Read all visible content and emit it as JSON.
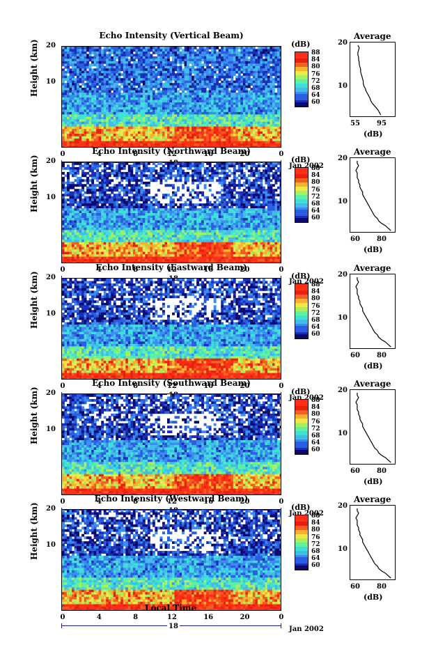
{
  "chart_data": [
    {
      "type": "heatmap",
      "title": "Echo Intensity (Vertical Beam)",
      "ylabel": "Height (km)",
      "x_ticks": [
        "0",
        "4",
        "8",
        "12",
        "16",
        "20",
        "0"
      ],
      "y_ticks": [
        "20",
        "10"
      ],
      "date_day": "18",
      "date_month": "Jan 2002",
      "colorbar": {
        "unit": "(dB)",
        "ticks": [
          "88",
          "84",
          "80",
          "76",
          "72",
          "68",
          "64",
          "60"
        ],
        "range": [
          60,
          88
        ]
      },
      "average": {
        "title": "Average",
        "xlabel": "(dB)",
        "x_ticks": [
          "55",
          "95"
        ],
        "y_ticks": [
          "20",
          "10"
        ],
        "profile_db": [
          92,
          90,
          88,
          85,
          82,
          79,
          77,
          76,
          74,
          72,
          70,
          69,
          67,
          66,
          66,
          65,
          64,
          63,
          62,
          62,
          61,
          60,
          60,
          59,
          59,
          58,
          58,
          59,
          60,
          58
        ]
      }
    },
    {
      "type": "heatmap",
      "title": "Echo Intensity (Northward Beam)",
      "ylabel": "Height (km)",
      "x_ticks": [
        "0",
        "4",
        "8",
        "12",
        "16",
        "20",
        "0"
      ],
      "y_ticks": [
        "20",
        "10"
      ],
      "date_day": "18",
      "date_month": "Jan 2002",
      "colorbar": {
        "unit": "(dB)",
        "ticks": [
          "88",
          "84",
          "80",
          "76",
          "72",
          "68",
          "64",
          "60"
        ],
        "range": [
          60,
          88
        ]
      },
      "average": {
        "title": "Average",
        "xlabel": "(dB)",
        "x_ticks": [
          "60",
          "80"
        ],
        "y_ticks": [
          "20",
          "10"
        ],
        "profile_db": [
          86,
          84,
          82,
          79,
          77,
          76,
          74,
          73,
          72,
          71,
          70,
          69,
          68,
          67,
          66,
          65,
          65,
          64,
          63,
          63,
          62,
          62,
          61,
          61,
          61,
          60,
          61,
          62,
          61,
          61
        ]
      }
    },
    {
      "type": "heatmap",
      "title": "Echo Intensity (Eastward Beam)",
      "ylabel": "Height (km)",
      "x_ticks": [
        "0",
        "4",
        "8",
        "12",
        "16",
        "20",
        "0"
      ],
      "y_ticks": [
        "20",
        "10"
      ],
      "date_day": "18",
      "date_month": "Jan 2002",
      "colorbar": {
        "unit": "(dB)",
        "ticks": [
          "88",
          "84",
          "80",
          "76",
          "72",
          "68",
          "64",
          "60"
        ],
        "range": [
          60,
          88
        ]
      },
      "average": {
        "title": "Average",
        "xlabel": "(dB)",
        "x_ticks": [
          "60",
          "80"
        ],
        "y_ticks": [
          "20",
          "10"
        ],
        "profile_db": [
          86,
          84,
          82,
          79,
          77,
          76,
          74,
          73,
          72,
          71,
          70,
          69,
          68,
          67,
          66,
          65,
          65,
          64,
          63,
          63,
          62,
          62,
          61,
          61,
          61,
          60,
          61,
          62,
          61,
          61
        ]
      }
    },
    {
      "type": "heatmap",
      "title": "Echo Intensity (Southward Beam)",
      "ylabel": "Height (km)",
      "x_ticks": [
        "0",
        "4",
        "8",
        "12",
        "16",
        "20",
        "0"
      ],
      "y_ticks": [
        "20",
        "10"
      ],
      "date_day": "18",
      "date_month": "Jan 2002",
      "colorbar": {
        "unit": "(dB)",
        "ticks": [
          "88",
          "84",
          "80",
          "76",
          "72",
          "68",
          "64",
          "60"
        ],
        "range": [
          60,
          88
        ]
      },
      "average": {
        "title": "Average",
        "xlabel": "(dB)",
        "x_ticks": [
          "60",
          "80"
        ],
        "y_ticks": [
          "20",
          "10"
        ],
        "profile_db": [
          86,
          84,
          82,
          79,
          77,
          76,
          74,
          73,
          72,
          71,
          70,
          69,
          68,
          67,
          66,
          65,
          65,
          64,
          63,
          63,
          62,
          62,
          61,
          61,
          61,
          60,
          61,
          62,
          61,
          61
        ]
      }
    },
    {
      "type": "heatmap",
      "title": "Echo Intensity (Westward Beam)",
      "ylabel": "Height (km)",
      "x_ticks": [
        "0",
        "4",
        "8",
        "12",
        "16",
        "20",
        "0"
      ],
      "y_ticks": [
        "20",
        "10"
      ],
      "date_day": "18",
      "date_month": "Jan 2002",
      "colorbar": {
        "unit": "(dB)",
        "ticks": [
          "88",
          "84",
          "80",
          "76",
          "72",
          "68",
          "64",
          "60"
        ],
        "range": [
          60,
          88
        ]
      },
      "average": {
        "title": "Average",
        "xlabel": "(dB)",
        "x_ticks": [
          "60",
          "80"
        ],
        "y_ticks": [
          "20",
          "10"
        ],
        "profile_db": [
          86,
          84,
          82,
          79,
          77,
          76,
          74,
          73,
          72,
          71,
          70,
          69,
          68,
          67,
          66,
          65,
          65,
          64,
          63,
          63,
          62,
          62,
          61,
          61,
          61,
          60,
          61,
          62,
          61,
          61
        ]
      }
    }
  ],
  "xlabel": "Local Time"
}
